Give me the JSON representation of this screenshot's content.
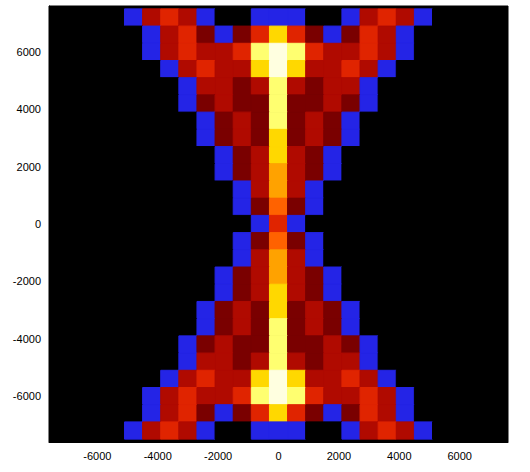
{
  "chart_data": {
    "type": "heatmap",
    "x": [
      -7200,
      -6600,
      -6000,
      -5400,
      -4800,
      -4200,
      -3600,
      -3000,
      -2400,
      -1800,
      -1200,
      -600,
      0,
      600,
      1200,
      1800,
      2400,
      3000,
      3600,
      4200,
      4800,
      5400,
      6000,
      6600,
      7200
    ],
    "y": [
      7200,
      6600,
      6000,
      5400,
      4800,
      4200,
      3600,
      3000,
      2400,
      1800,
      1200,
      600,
      0,
      -600,
      -1200,
      -1800,
      -2400,
      -3000,
      -3600,
      -4200,
      -4800,
      -5400,
      -6000,
      -6600,
      -7200
    ],
    "cells": [
      [
        0,
        0,
        0,
        0,
        1,
        3,
        4,
        3,
        1,
        0,
        0,
        1,
        1,
        1,
        0,
        0,
        1,
        3,
        4,
        3,
        1,
        0,
        0,
        0,
        0
      ],
      [
        0,
        0,
        0,
        0,
        0,
        1,
        3,
        4,
        2,
        1,
        2,
        4,
        7,
        4,
        2,
        1,
        2,
        4,
        3,
        1,
        0,
        0,
        0,
        0,
        0
      ],
      [
        0,
        0,
        0,
        0,
        0,
        1,
        3,
        4,
        3,
        3,
        4,
        8,
        9,
        8,
        4,
        3,
        3,
        4,
        3,
        1,
        0,
        0,
        0,
        0,
        0
      ],
      [
        0,
        0,
        0,
        0,
        0,
        0,
        1,
        3,
        4,
        3,
        3,
        7,
        9,
        7,
        3,
        3,
        4,
        3,
        1,
        0,
        0,
        0,
        0,
        0,
        0
      ],
      [
        0,
        0,
        0,
        0,
        0,
        0,
        0,
        1,
        3,
        3,
        2,
        3,
        8,
        3,
        2,
        3,
        3,
        1,
        0,
        0,
        0,
        0,
        0,
        0,
        0
      ],
      [
        0,
        0,
        0,
        0,
        0,
        0,
        0,
        1,
        2,
        3,
        2,
        2,
        8,
        2,
        2,
        3,
        2,
        1,
        0,
        0,
        0,
        0,
        0,
        0,
        0
      ],
      [
        0,
        0,
        0,
        0,
        0,
        0,
        0,
        0,
        1,
        2,
        3,
        2,
        8,
        2,
        3,
        2,
        1,
        0,
        0,
        0,
        0,
        0,
        0,
        0,
        0
      ],
      [
        0,
        0,
        0,
        0,
        0,
        0,
        0,
        0,
        1,
        2,
        3,
        2,
        7,
        2,
        3,
        2,
        1,
        0,
        0,
        0,
        0,
        0,
        0,
        0,
        0
      ],
      [
        0,
        0,
        0,
        0,
        0,
        0,
        0,
        0,
        0,
        1,
        2,
        3,
        7,
        3,
        2,
        1,
        0,
        0,
        0,
        0,
        0,
        0,
        0,
        0,
        0
      ],
      [
        0,
        0,
        0,
        0,
        0,
        0,
        0,
        0,
        0,
        1,
        2,
        3,
        6,
        3,
        2,
        1,
        0,
        0,
        0,
        0,
        0,
        0,
        0,
        0,
        0
      ],
      [
        0,
        0,
        0,
        0,
        0,
        0,
        0,
        0,
        0,
        0,
        1,
        3,
        6,
        3,
        1,
        0,
        0,
        0,
        0,
        0,
        0,
        0,
        0,
        0,
        0
      ],
      [
        0,
        0,
        0,
        0,
        0,
        0,
        0,
        0,
        0,
        0,
        1,
        2,
        5,
        2,
        1,
        0,
        0,
        0,
        0,
        0,
        0,
        0,
        0,
        0,
        0
      ],
      [
        0,
        0,
        0,
        0,
        0,
        0,
        0,
        0,
        0,
        0,
        0,
        1,
        4,
        1,
        0,
        0,
        0,
        0,
        0,
        0,
        0,
        0,
        0,
        0,
        0
      ],
      [
        0,
        0,
        0,
        0,
        0,
        0,
        0,
        0,
        0,
        0,
        1,
        2,
        5,
        2,
        1,
        0,
        0,
        0,
        0,
        0,
        0,
        0,
        0,
        0,
        0
      ],
      [
        0,
        0,
        0,
        0,
        0,
        0,
        0,
        0,
        0,
        0,
        1,
        3,
        6,
        3,
        1,
        0,
        0,
        0,
        0,
        0,
        0,
        0,
        0,
        0,
        0
      ],
      [
        0,
        0,
        0,
        0,
        0,
        0,
        0,
        0,
        0,
        1,
        2,
        3,
        6,
        3,
        2,
        1,
        0,
        0,
        0,
        0,
        0,
        0,
        0,
        0,
        0
      ],
      [
        0,
        0,
        0,
        0,
        0,
        0,
        0,
        0,
        0,
        1,
        2,
        3,
        7,
        3,
        2,
        1,
        0,
        0,
        0,
        0,
        0,
        0,
        0,
        0,
        0
      ],
      [
        0,
        0,
        0,
        0,
        0,
        0,
        0,
        0,
        1,
        2,
        3,
        2,
        7,
        2,
        3,
        2,
        1,
        0,
        0,
        0,
        0,
        0,
        0,
        0,
        0
      ],
      [
        0,
        0,
        0,
        0,
        0,
        0,
        0,
        0,
        1,
        2,
        3,
        2,
        8,
        2,
        3,
        2,
        1,
        0,
        0,
        0,
        0,
        0,
        0,
        0,
        0
      ],
      [
        0,
        0,
        0,
        0,
        0,
        0,
        0,
        1,
        2,
        3,
        2,
        2,
        8,
        2,
        2,
        3,
        2,
        1,
        0,
        0,
        0,
        0,
        0,
        0,
        0
      ],
      [
        0,
        0,
        0,
        0,
        0,
        0,
        0,
        1,
        3,
        3,
        2,
        3,
        8,
        3,
        2,
        3,
        3,
        1,
        0,
        0,
        0,
        0,
        0,
        0,
        0
      ],
      [
        0,
        0,
        0,
        0,
        0,
        0,
        1,
        3,
        4,
        3,
        3,
        7,
        9,
        7,
        3,
        3,
        4,
        3,
        1,
        0,
        0,
        0,
        0,
        0,
        0
      ],
      [
        0,
        0,
        0,
        0,
        0,
        1,
        3,
        4,
        3,
        3,
        4,
        8,
        9,
        8,
        4,
        3,
        3,
        4,
        3,
        1,
        0,
        0,
        0,
        0,
        0
      ],
      [
        0,
        0,
        0,
        0,
        0,
        1,
        3,
        4,
        2,
        1,
        2,
        4,
        7,
        4,
        2,
        1,
        2,
        4,
        3,
        1,
        0,
        0,
        0,
        0,
        0
      ],
      [
        0,
        0,
        0,
        0,
        1,
        3,
        4,
        3,
        1,
        0,
        0,
        1,
        1,
        1,
        0,
        0,
        1,
        3,
        4,
        3,
        1,
        0,
        0,
        0,
        0
      ]
    ],
    "zlim": [
      0,
      9
    ],
    "xlim": [
      -7600,
      7600
    ],
    "ylim": [
      -7600,
      7600
    ],
    "xticks": [
      -6000,
      -4000,
      -2000,
      0,
      2000,
      4000,
      6000
    ],
    "yticks": [
      -6000,
      -4000,
      -2000,
      0,
      2000,
      4000,
      6000
    ],
    "grid": false
  }
}
